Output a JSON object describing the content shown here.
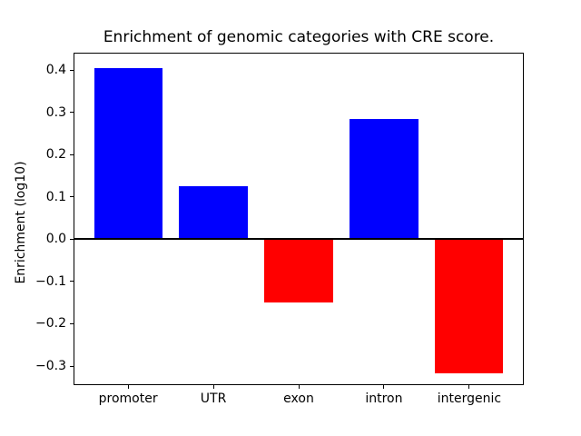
{
  "figure": {
    "background": "#ffffff",
    "text_color": "#000000",
    "axis_color": "#000000"
  },
  "chart_data": {
    "type": "bar",
    "title": "Enrichment of genomic categories with CRE score.",
    "ylabel": "Enrichment (log10)",
    "categories": [
      "promoter",
      "UTR",
      "exon",
      "intron",
      "intergenic"
    ],
    "values": [
      0.405,
      0.126,
      -0.15,
      0.285,
      -0.317
    ],
    "bar_colors": [
      "#0000ff",
      "#0000ff",
      "#ff0000",
      "#0000ff",
      "#ff0000"
    ],
    "positive_color": "#0000ff",
    "negative_color": "#ff0000",
    "yticks": [
      0.4,
      0.3,
      0.2,
      0.1,
      0.0,
      -0.1,
      -0.2,
      -0.3
    ],
    "ytick_labels": [
      "0.4",
      "0.3",
      "0.2",
      "0.1",
      "0.0",
      "−0.1",
      "−0.2",
      "−0.3"
    ],
    "ylim": [
      -0.345,
      0.441
    ],
    "bar_width_fraction": 0.8,
    "zero_line": true,
    "grid": false,
    "legend": "none"
  }
}
